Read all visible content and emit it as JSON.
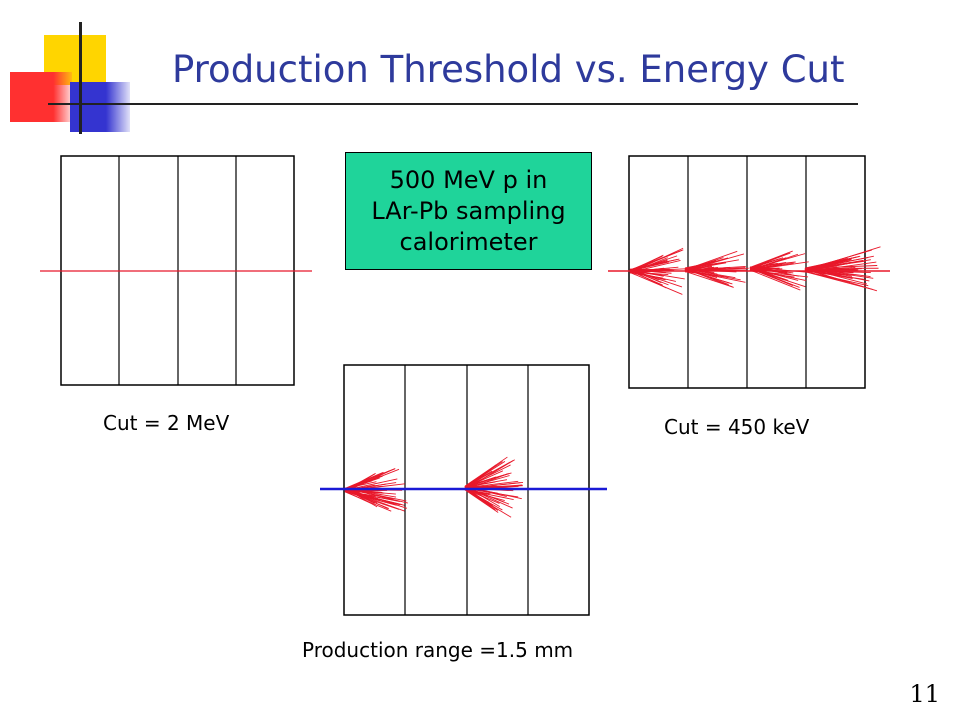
{
  "slide": {
    "title": "Production Threshold vs. Energy Cut",
    "number": "11"
  },
  "infobox": {
    "lines": [
      "500 MeV p in",
      "LAr-Pb sampling",
      "calorimeter"
    ],
    "color": "#1fd49a"
  },
  "panels": {
    "cut_2mev": {
      "caption": "Cut = 2 MeV"
    },
    "cut_450kev": {
      "caption": "Cut = 450 keV"
    },
    "production_range": {
      "caption": "Production range =1.5 mm"
    }
  },
  "colors": {
    "title": "#2e3a9c",
    "track_red": "#e8182a",
    "track_blue": "#1a1ad6",
    "deco_yellow": "#ffd500",
    "deco_red": "#ff3030",
    "deco_blue": "#3434d0"
  }
}
